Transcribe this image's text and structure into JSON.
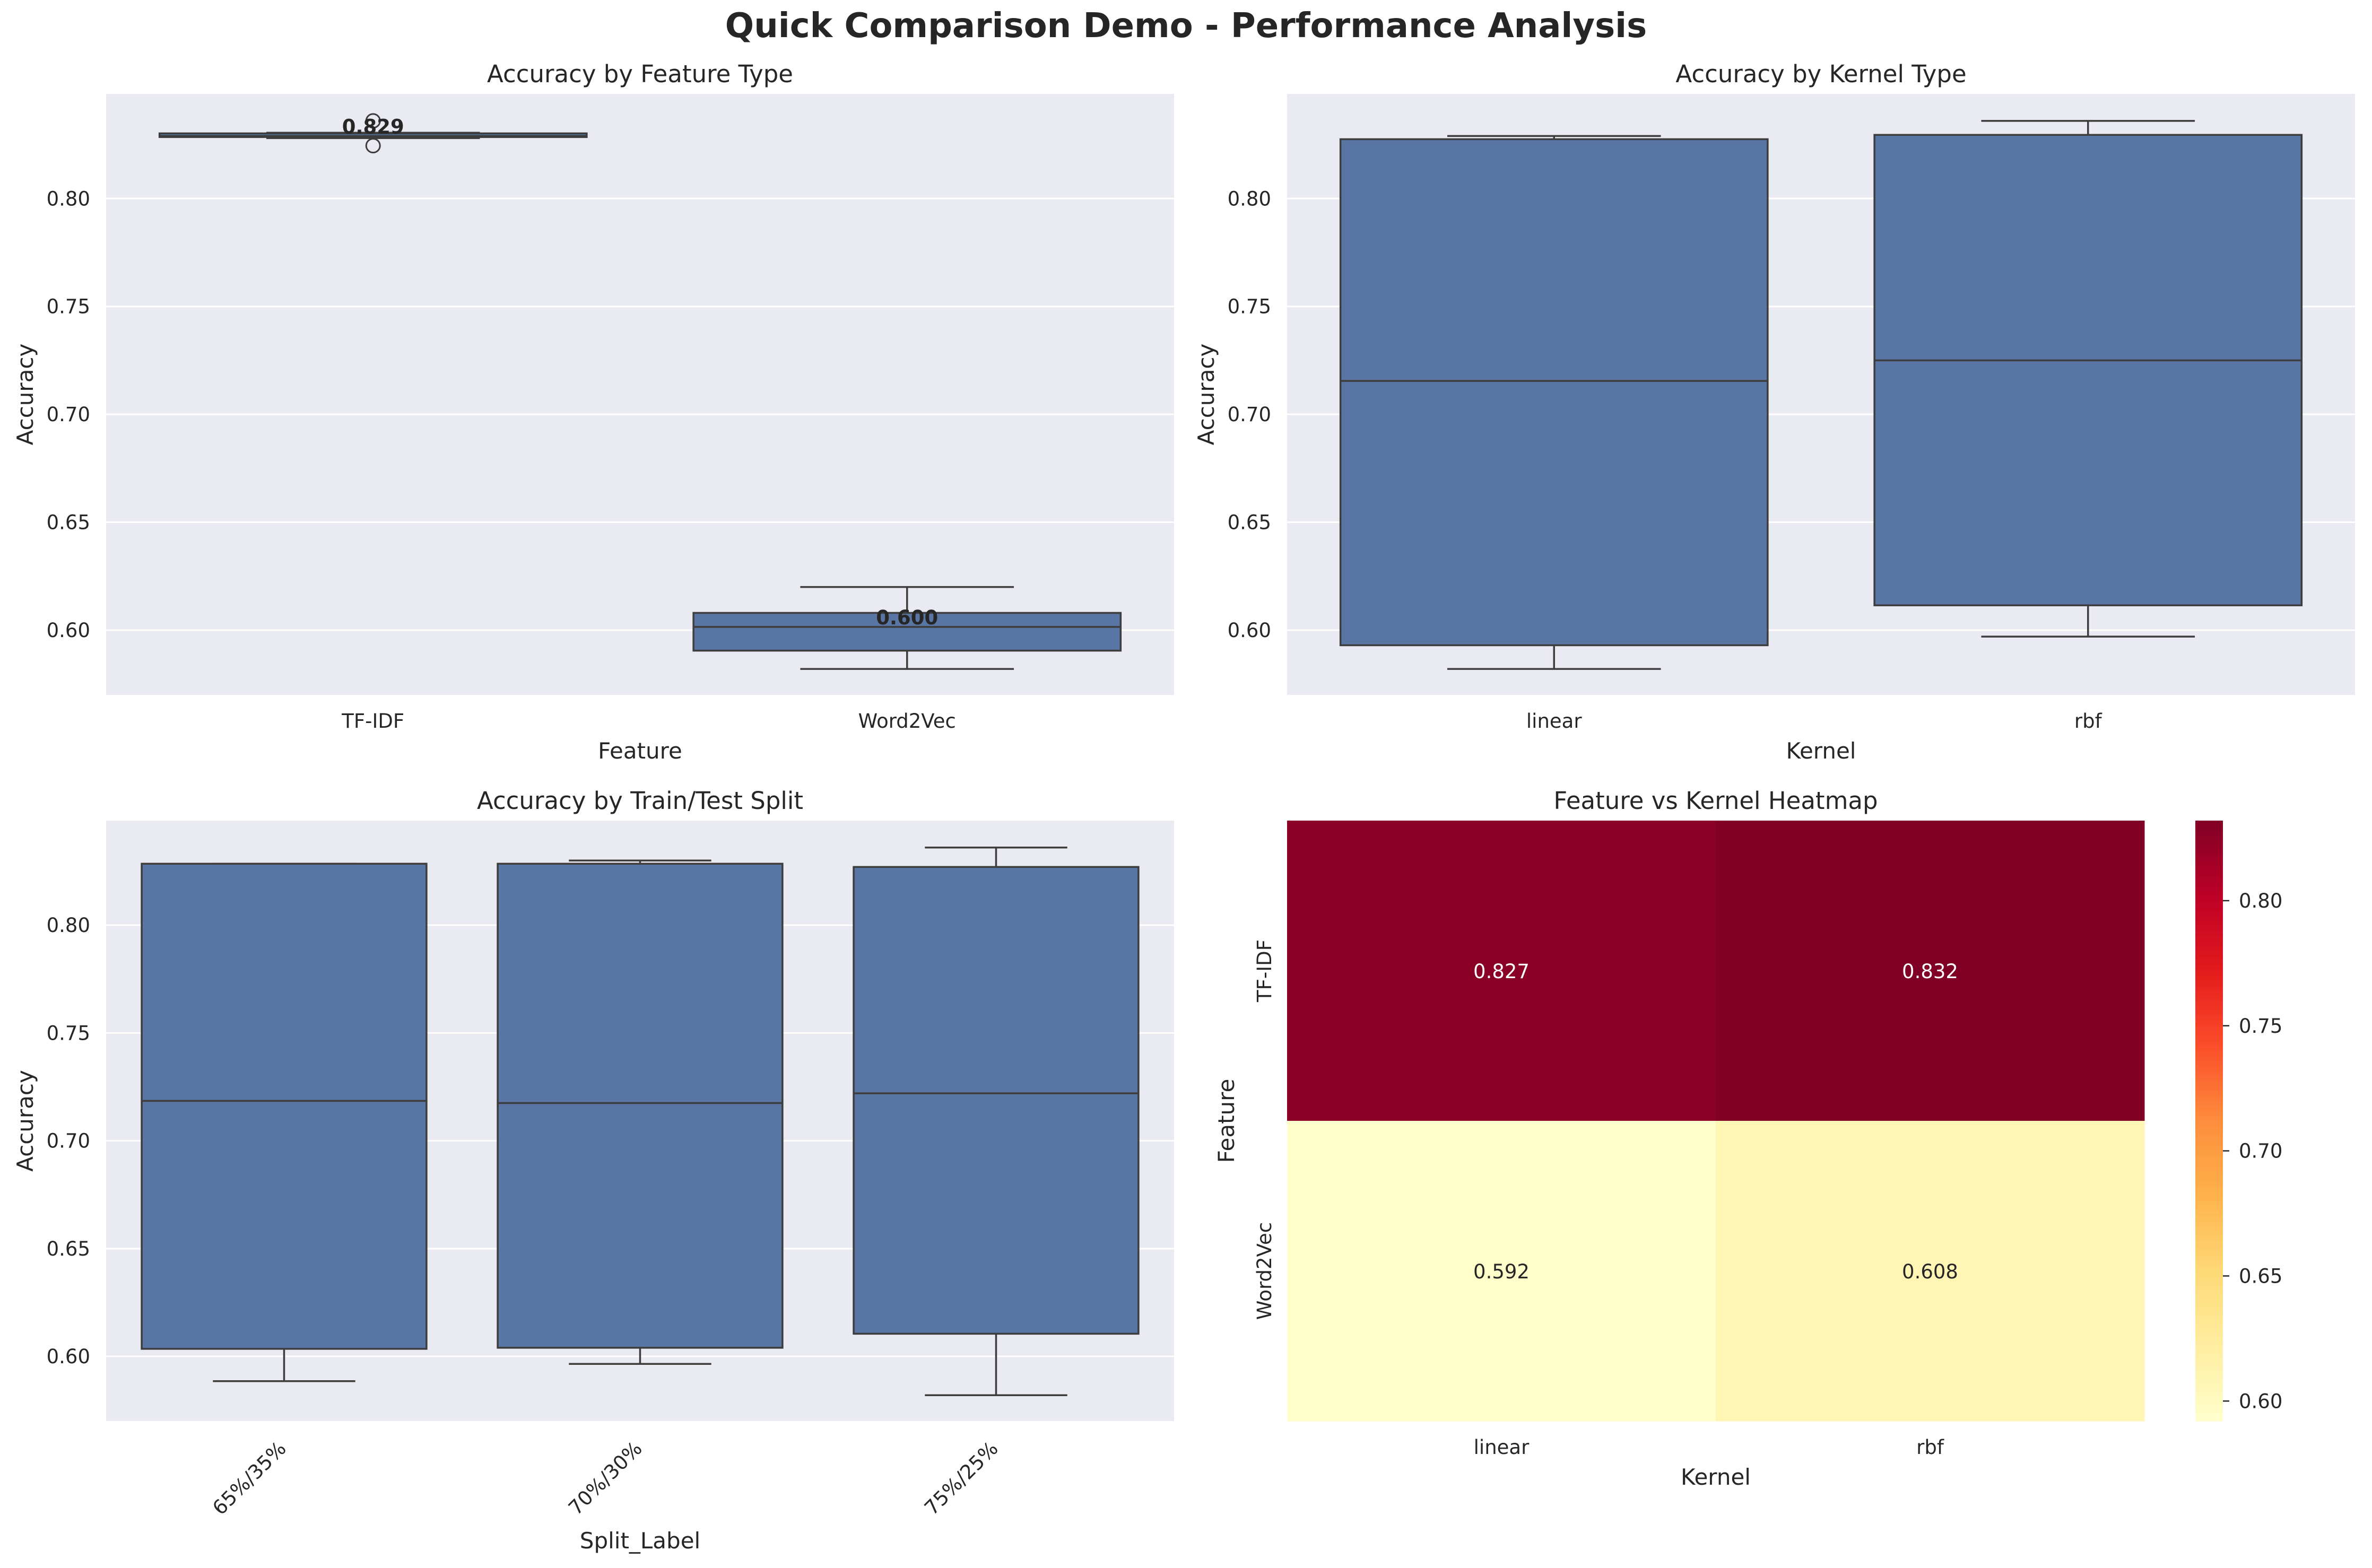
{
  "figure": {
    "title": "Quick Comparison Demo - Performance Analysis",
    "colors": {
      "box": "#5975a4",
      "panel_bg": "#eaeaf2",
      "grid": "#ffffff",
      "line": "#3d3d3d",
      "text": "#262626"
    }
  },
  "chart_data": [
    {
      "type": "box",
      "title": "Accuracy by Feature Type",
      "xlabel": "Feature",
      "ylabel": "Accuracy",
      "ylim": [
        0.57,
        0.8485
      ],
      "yticks": [
        "0.60",
        "0.65",
        "0.70",
        "0.75",
        "0.80"
      ],
      "grid": true,
      "categories": [
        "TF-IDF",
        "Word2Vec"
      ],
      "boxes": [
        {
          "q1": 0.8285,
          "median": 0.829,
          "q3": 0.8302,
          "whisker_low": 0.828,
          "whisker_high": 0.8305,
          "outliers": [
            0.8245,
            0.836
          ],
          "label": "0.829"
        },
        {
          "q1": 0.5905,
          "median": 0.6015,
          "q3": 0.608,
          "whisker_low": 0.582,
          "whisker_high": 0.62,
          "outliers": [],
          "label": "0.600"
        }
      ]
    },
    {
      "type": "box",
      "title": "Accuracy by Kernel Type",
      "xlabel": "Kernel",
      "ylabel": "Accuracy",
      "ylim": [
        0.57,
        0.8485
      ],
      "yticks": [
        "0.60",
        "0.65",
        "0.70",
        "0.75",
        "0.80"
      ],
      "grid": true,
      "categories": [
        "linear",
        "rbf"
      ],
      "boxes": [
        {
          "q1": 0.593,
          "median": 0.7155,
          "q3": 0.8275,
          "whisker_low": 0.582,
          "whisker_high": 0.829,
          "outliers": []
        },
        {
          "q1": 0.6115,
          "median": 0.725,
          "q3": 0.8295,
          "whisker_low": 0.597,
          "whisker_high": 0.836,
          "outliers": []
        }
      ]
    },
    {
      "type": "box",
      "title": "Accuracy by Train/Test Split",
      "xlabel": "Split_Label",
      "ylabel": "Accuracy",
      "ylim": [
        0.57,
        0.8485
      ],
      "yticks": [
        "0.60",
        "0.65",
        "0.70",
        "0.75",
        "0.80"
      ],
      "grid": true,
      "categories": [
        "65%/35%",
        "70%/30%",
        "75%/25%"
      ],
      "boxes": [
        {
          "q1": 0.6035,
          "median": 0.7185,
          "q3": 0.8285,
          "whisker_low": 0.5885,
          "whisker_high": 0.8285,
          "outliers": []
        },
        {
          "q1": 0.604,
          "median": 0.7175,
          "q3": 0.8285,
          "whisker_low": 0.5965,
          "whisker_high": 0.83,
          "outliers": []
        },
        {
          "q1": 0.6105,
          "median": 0.722,
          "q3": 0.827,
          "whisker_low": 0.582,
          "whisker_high": 0.836,
          "outliers": []
        }
      ]
    },
    {
      "type": "heatmap",
      "title": "Feature vs Kernel Heatmap",
      "xlabel": "Kernel",
      "ylabel": "Feature",
      "rows": [
        "TF-IDF",
        "Word2Vec"
      ],
      "cols": [
        "linear",
        "rbf"
      ],
      "values": [
        [
          0.827,
          0.832
        ],
        [
          0.592,
          0.608
        ]
      ],
      "annotations": [
        [
          "0.827",
          "0.832"
        ],
        [
          "0.592",
          "0.608"
        ]
      ],
      "colormap": "YlOrRd",
      "vmin": 0.592,
      "vmax": 0.832,
      "colorbar_ticks": [
        "0.60",
        "0.65",
        "0.70",
        "0.75",
        "0.80"
      ]
    }
  ]
}
